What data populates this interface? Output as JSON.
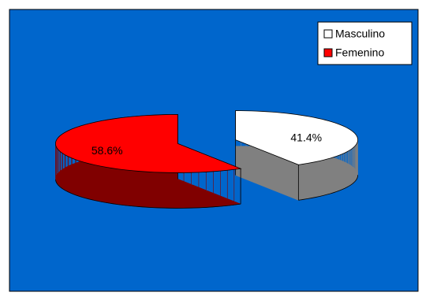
{
  "chart_data": {
    "type": "pie",
    "categories": [
      "Masculino",
      "Femenino"
    ],
    "values": [
      41.4,
      58.6
    ],
    "value_labels": [
      "41.4%",
      "58.6%"
    ],
    "colors": [
      "#ffffff",
      "#ff0000"
    ],
    "side_colors": [
      "#808080",
      "#800000"
    ],
    "background": "#0066cc",
    "legend": "top-right"
  }
}
